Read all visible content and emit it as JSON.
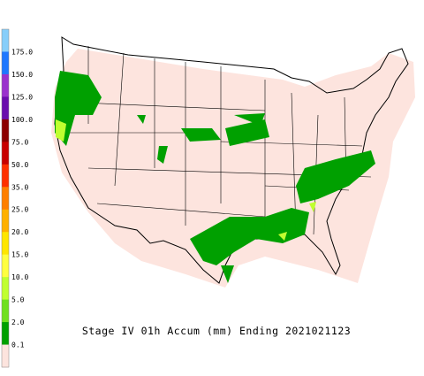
{
  "legend": {
    "labels": [
      "175.0",
      "150.0",
      "125.0",
      "100.0",
      "75.0",
      "50.0",
      "35.0",
      "25.0",
      "20.0",
      "15.0",
      "10.0",
      "5.0",
      "2.0",
      "0.1"
    ],
    "colors": [
      "#87cefa",
      "#1e78ff",
      "#9a32cd",
      "#6a0dad",
      "#8b0000",
      "#c80000",
      "#ff3000",
      "#ff7f00",
      "#ffb000",
      "#ffe600",
      "#ffff40",
      "#c0ff30",
      "#70e020",
      "#00a000",
      "#fde4de"
    ]
  },
  "title": "Stage IV 01h Accum (mm) Ending 2021021123"
}
